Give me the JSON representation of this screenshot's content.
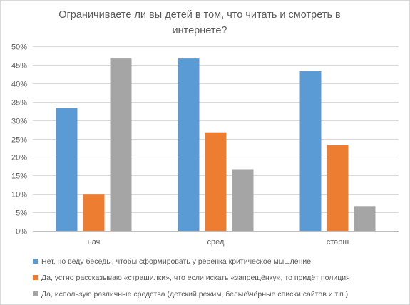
{
  "chart_data": {
    "type": "bar",
    "title": "Ограничиваете ли вы детей в том, что читать и смотреть в интернете?",
    "categories": [
      "нач",
      "сред",
      "старш"
    ],
    "series": [
      {
        "name": "Нет, но веду беседы, чтобы сформировать у ребёнка критическое мышление",
        "color": "#5b9bd5",
        "values": [
          33.3,
          46.7,
          43.3
        ]
      },
      {
        "name": "Да, устно рассказываю «страшилки», что если искать «запрещёнку», то придёт полиция",
        "color": "#ed7d31",
        "values": [
          10.0,
          26.7,
          23.3
        ]
      },
      {
        "name": "Да, использую различные средства (детский режим, белые\\чёрные списки сайтов и т.п.)",
        "color": "#a5a5a5",
        "values": [
          46.7,
          16.7,
          6.7
        ]
      }
    ],
    "ylim": [
      0,
      50
    ],
    "yticks": [
      "0%",
      "5%",
      "10%",
      "15%",
      "20%",
      "25%",
      "30%",
      "35%",
      "40%",
      "45%",
      "50%"
    ],
    "grid": true,
    "legend_position": "bottom",
    "xlabel": "",
    "ylabel": ""
  }
}
